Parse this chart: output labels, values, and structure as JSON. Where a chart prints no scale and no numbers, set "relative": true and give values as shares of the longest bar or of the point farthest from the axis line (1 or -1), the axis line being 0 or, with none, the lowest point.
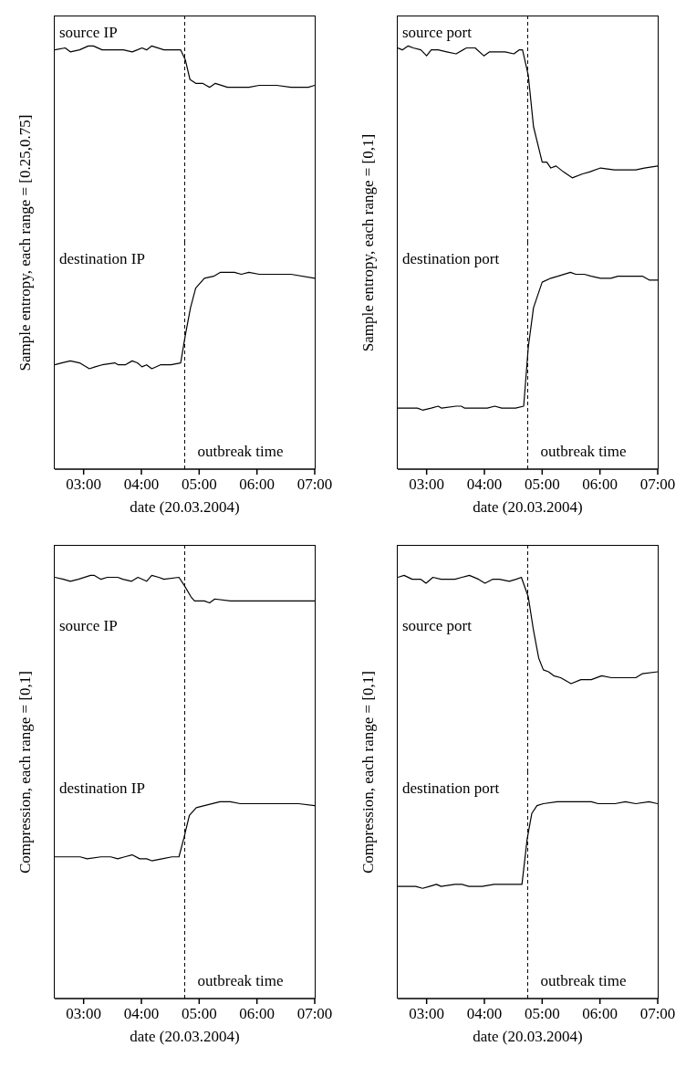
{
  "chart_data": [
    {
      "type": "line",
      "title": "source IP",
      "ylabel": "Sample entropy, each range = [0.25,0.75]",
      "color": "#000000",
      "relative": true,
      "xlim": [
        2.5,
        7
      ],
      "xticks": [
        {
          "value": 3,
          "label": null
        },
        {
          "value": 4,
          "label": null
        },
        {
          "value": 5,
          "label": null
        },
        {
          "value": 6,
          "label": null
        },
        {
          "value": 7,
          "label": null
        }
      ],
      "tick_labels": false,
      "ref_lines": [
        {
          "axis": "x",
          "value": 4.75,
          "line_style": "dashed"
        }
      ],
      "x": [
        2.5,
        2.68,
        2.77,
        2.93,
        3.08,
        3.17,
        3.32,
        3.54,
        3.69,
        3.84,
        3.93,
        4.01,
        4.09,
        4.18,
        4.39,
        4.57,
        4.68,
        4.76,
        4.84,
        4.94,
        5.06,
        5.12,
        5.18,
        5.28,
        5.49,
        5.86,
        6.04,
        6.34,
        6.59,
        6.89,
        7.0
      ],
      "values": [
        0.98,
        0.99,
        0.97,
        0.98,
        1,
        1,
        0.98,
        0.98,
        0.98,
        0.97,
        0.98,
        0.99,
        0.98,
        1,
        0.98,
        0.98,
        0.98,
        0.93,
        0.83,
        0.81,
        0.81,
        0.8,
        0.79,
        0.81,
        0.79,
        0.79,
        0.8,
        0.8,
        0.79,
        0.79,
        0.8
      ]
    },
    {
      "type": "line",
      "title": "destination IP",
      "xlabel": "date (20.03.2004)",
      "color": "#000000",
      "relative": true,
      "xlim": [
        2.5,
        7
      ],
      "xticks": [
        {
          "value": 3,
          "label": "03:00"
        },
        {
          "value": 4,
          "label": "04:00"
        },
        {
          "value": 5,
          "label": "05:00"
        },
        {
          "value": 6,
          "label": "06:00"
        },
        {
          "value": 7,
          "label": "07:00"
        }
      ],
      "tick_labels": "x",
      "ref_lines": [
        {
          "axis": "x",
          "value": 4.75,
          "label": "outbreak time",
          "line_style": "dashed"
        }
      ],
      "x": [
        2.5,
        2.62,
        2.77,
        2.93,
        3.1,
        3.2,
        3.32,
        3.54,
        3.6,
        3.72,
        3.84,
        3.93,
        4.01,
        4.09,
        4.18,
        4.33,
        4.51,
        4.68,
        4.76,
        4.85,
        4.94,
        5.09,
        5.25,
        5.37,
        5.61,
        5.73,
        5.86,
        6.04,
        6.34,
        6.59,
        7.0
      ],
      "values": [
        0.53,
        0.54,
        0.55,
        0.54,
        0.51,
        0.52,
        0.53,
        0.54,
        0.53,
        0.53,
        0.55,
        0.54,
        0.52,
        0.53,
        0.51,
        0.53,
        0.53,
        0.54,
        0.68,
        0.82,
        0.92,
        0.97,
        0.98,
        1,
        1,
        0.99,
        1,
        0.99,
        0.99,
        0.99,
        0.97
      ]
    },
    {
      "type": "line",
      "title": "source port",
      "ylabel": "Sample entropy, each range = [0,1]",
      "color": "#000000",
      "relative": true,
      "xlim": [
        2.5,
        7
      ],
      "xticks": [
        {
          "value": 3,
          "label": null
        },
        {
          "value": 4,
          "label": null
        },
        {
          "value": 5,
          "label": null
        },
        {
          "value": 6,
          "label": null
        },
        {
          "value": 7,
          "label": null
        }
      ],
      "tick_labels": false,
      "ref_lines": [
        {
          "axis": "x",
          "value": 4.75,
          "line_style": "dashed"
        }
      ],
      "x": [
        2.5,
        2.58,
        2.68,
        2.77,
        2.9,
        3.0,
        3.08,
        3.2,
        3.35,
        3.51,
        3.69,
        3.84,
        3.99,
        4.09,
        4.36,
        4.51,
        4.6,
        4.66,
        4.76,
        4.85,
        5.0,
        5.08,
        5.15,
        5.24,
        5.37,
        5.52,
        5.7,
        5.82,
        6.01,
        6.25,
        6.43,
        6.62,
        6.77,
        7.0
      ],
      "values": [
        0.99,
        0.98,
        1,
        0.99,
        0.98,
        0.95,
        0.98,
        0.98,
        0.97,
        0.96,
        0.99,
        0.99,
        0.95,
        0.97,
        0.97,
        0.96,
        0.98,
        0.98,
        0.85,
        0.59,
        0.41,
        0.41,
        0.38,
        0.39,
        0.36,
        0.33,
        0.35,
        0.36,
        0.38,
        0.37,
        0.37,
        0.37,
        0.38,
        0.39
      ]
    },
    {
      "type": "line",
      "title": "destination port",
      "xlabel": "date (20.03.2004)",
      "color": "#000000",
      "relative": true,
      "xlim": [
        2.5,
        7
      ],
      "xticks": [
        {
          "value": 3,
          "label": "03:00"
        },
        {
          "value": 4,
          "label": "04:00"
        },
        {
          "value": 5,
          "label": "05:00"
        },
        {
          "value": 6,
          "label": "06:00"
        },
        {
          "value": 7,
          "label": "07:00"
        }
      ],
      "tick_labels": "x",
      "ref_lines": [
        {
          "axis": "x",
          "value": 4.75,
          "label": "outbreak time",
          "line_style": "dashed"
        }
      ],
      "x": [
        2.5,
        2.59,
        2.84,
        2.93,
        3.08,
        3.2,
        3.26,
        3.51,
        3.6,
        3.66,
        3.87,
        4.05,
        4.18,
        4.3,
        4.54,
        4.68,
        4.76,
        4.85,
        5.0,
        5.15,
        5.27,
        5.49,
        5.58,
        5.73,
        5.85,
        6.01,
        6.19,
        6.31,
        6.43,
        6.62,
        6.74,
        6.86,
        7.0
      ],
      "values": [
        0.31,
        0.31,
        0.31,
        0.3,
        0.31,
        0.32,
        0.31,
        0.32,
        0.32,
        0.31,
        0.31,
        0.31,
        0.32,
        0.31,
        0.31,
        0.32,
        0.62,
        0.82,
        0.95,
        0.97,
        0.98,
        1,
        0.99,
        0.99,
        0.98,
        0.97,
        0.97,
        0.98,
        0.98,
        0.98,
        0.98,
        0.96,
        0.96
      ]
    },
    {
      "type": "line",
      "title": "source IP",
      "ylabel": "Compression, each range = [0,1]",
      "color": "#000000",
      "relative": true,
      "xlim": [
        2.5,
        7
      ],
      "xticks": [
        {
          "value": 3,
          "label": null
        },
        {
          "value": 4,
          "label": null
        },
        {
          "value": 5,
          "label": null
        },
        {
          "value": 6,
          "label": null
        },
        {
          "value": 7,
          "label": null
        }
      ],
      "tick_labels": false,
      "ref_lines": [
        {
          "axis": "x",
          "value": 4.75,
          "line_style": "dashed"
        }
      ],
      "x": [
        2.5,
        2.65,
        2.77,
        2.91,
        3.12,
        3.18,
        3.3,
        3.41,
        3.59,
        3.68,
        3.83,
        3.94,
        4.09,
        4.18,
        4.3,
        4.39,
        4.65,
        4.74,
        4.86,
        4.92,
        5.09,
        5.18,
        5.27,
        5.54,
        5.89,
        6.07,
        6.36,
        6.72,
        7.0
      ],
      "values": [
        0.99,
        0.98,
        0.97,
        0.98,
        1,
        1,
        0.98,
        0.99,
        0.99,
        0.98,
        0.97,
        0.99,
        0.97,
        1,
        0.99,
        0.98,
        0.99,
        0.95,
        0.89,
        0.87,
        0.87,
        0.86,
        0.88,
        0.87,
        0.87,
        0.87,
        0.87,
        0.87,
        0.87
      ]
    },
    {
      "type": "line",
      "title": "destination IP",
      "xlabel": "date (20.03.2004)",
      "color": "#000000",
      "relative": true,
      "xlim": [
        2.5,
        7
      ],
      "xticks": [
        {
          "value": 3,
          "label": "03:00"
        },
        {
          "value": 4,
          "label": "04:00"
        },
        {
          "value": 5,
          "label": "05:00"
        },
        {
          "value": 6,
          "label": "06:00"
        },
        {
          "value": 7,
          "label": "07:00"
        }
      ],
      "tick_labels": "x",
      "ref_lines": [
        {
          "axis": "x",
          "value": 4.75,
          "label": "outbreak time",
          "line_style": "dashed"
        }
      ],
      "x": [
        2.5,
        2.65,
        2.94,
        3.06,
        3.3,
        3.47,
        3.59,
        3.71,
        3.84,
        3.97,
        4.03,
        4.09,
        4.18,
        4.36,
        4.53,
        4.65,
        4.74,
        4.83,
        4.95,
        5.09,
        5.36,
        5.54,
        5.71,
        5.77,
        5.83,
        6.07,
        6.42,
        6.72,
        7.0
      ],
      "values": [
        0.72,
        0.72,
        0.72,
        0.71,
        0.72,
        0.72,
        0.71,
        0.72,
        0.73,
        0.71,
        0.71,
        0.71,
        0.7,
        0.71,
        0.72,
        0.72,
        0.82,
        0.93,
        0.97,
        0.98,
        1,
        1,
        0.99,
        0.99,
        0.99,
        0.99,
        0.99,
        0.99,
        0.98
      ]
    },
    {
      "type": "line",
      "title": "source port",
      "ylabel": "Compression, each range = [0,1]",
      "color": "#000000",
      "relative": true,
      "xlim": [
        2.5,
        7
      ],
      "xticks": [
        {
          "value": 3,
          "label": null
        },
        {
          "value": 4,
          "label": null
        },
        {
          "value": 5,
          "label": null
        },
        {
          "value": 6,
          "label": null
        },
        {
          "value": 7,
          "label": null
        }
      ],
      "tick_labels": false,
      "ref_lines": [
        {
          "axis": "x",
          "value": 4.75,
          "line_style": "dashed"
        }
      ],
      "x": [
        2.5,
        2.61,
        2.75,
        2.9,
        2.99,
        3.11,
        3.25,
        3.49,
        3.61,
        3.74,
        3.9,
        4.01,
        4.14,
        4.26,
        4.43,
        4.55,
        4.64,
        4.76,
        4.85,
        4.94,
        5.02,
        5.11,
        5.2,
        5.32,
        5.5,
        5.67,
        5.85,
        6.03,
        6.2,
        6.44,
        6.62,
        6.73,
        7.0
      ],
      "values": [
        0.99,
        1,
        0.98,
        0.98,
        0.96,
        0.99,
        0.98,
        0.98,
        0.99,
        1,
        0.98,
        0.96,
        0.98,
        0.98,
        0.97,
        0.98,
        0.99,
        0.89,
        0.72,
        0.58,
        0.52,
        0.51,
        0.49,
        0.48,
        0.45,
        0.47,
        0.47,
        0.49,
        0.48,
        0.48,
        0.48,
        0.5,
        0.51
      ]
    },
    {
      "type": "line",
      "title": "destination port",
      "xlabel": "date (20.03.2004)",
      "color": "#000000",
      "relative": true,
      "xlim": [
        2.5,
        7
      ],
      "xticks": [
        {
          "value": 3,
          "label": "03:00"
        },
        {
          "value": 4,
          "label": "04:00"
        },
        {
          "value": 5,
          "label": "05:00"
        },
        {
          "value": 6,
          "label": "06:00"
        },
        {
          "value": 7,
          "label": "07:00"
        }
      ],
      "tick_labels": "x",
      "ref_lines": [
        {
          "axis": "x",
          "value": 4.75,
          "label": "outbreak time",
          "line_style": "dashed"
        }
      ],
      "x": [
        2.5,
        2.67,
        2.81,
        2.93,
        3.05,
        3.17,
        3.25,
        3.49,
        3.61,
        3.73,
        3.96,
        4.17,
        4.38,
        4.65,
        4.74,
        4.82,
        4.91,
        5.02,
        5.26,
        5.5,
        5.67,
        5.85,
        5.97,
        6.26,
        6.44,
        6.62,
        6.85,
        7.0
      ],
      "values": [
        0.57,
        0.57,
        0.57,
        0.56,
        0.57,
        0.58,
        0.57,
        0.58,
        0.58,
        0.57,
        0.57,
        0.58,
        0.58,
        0.58,
        0.81,
        0.94,
        0.98,
        0.99,
        1,
        1,
        1,
        1,
        0.99,
        0.99,
        1,
        0.99,
        1,
        0.99
      ]
    }
  ]
}
